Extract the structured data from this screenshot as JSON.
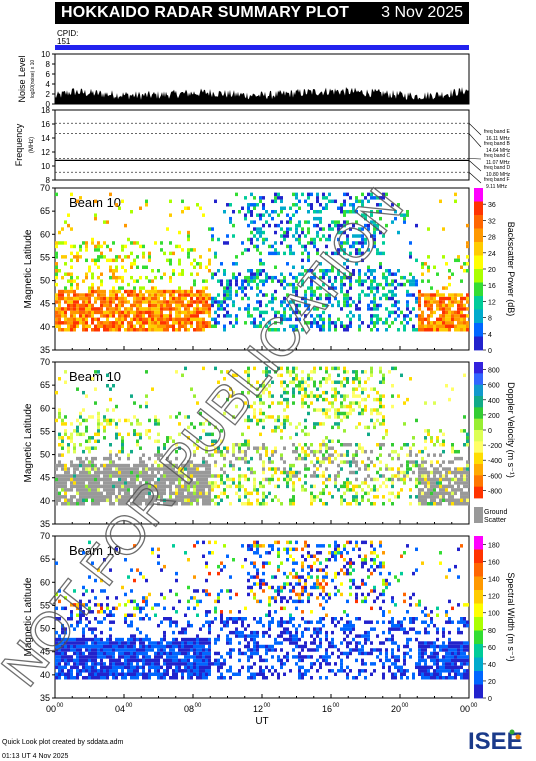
{
  "title": "HOKKAIDO RADAR SUMMARY PLOT",
  "date": "3 Nov 2025",
  "cpid_label": "CPID:",
  "cpid_value": "151",
  "watermark": "NOT FOR PUBLICATION",
  "footer_line1": "Quick Look plot created by sddata.adm",
  "footer_line2": "01:13 UT  4 Nov 2025",
  "logo_text": "ISEE",
  "colors": {
    "cpid_bar": "#2222ee",
    "ground_scatter": "#999999",
    "power_scale": [
      "#ff00ff",
      "#ff3300",
      "#ff6600",
      "#ff9900",
      "#ffcc00",
      "#ffff00",
      "#aaff00",
      "#33dd33",
      "#00cc99",
      "#00aacc",
      "#0066ff",
      "#2222cc"
    ],
    "velocity_scale": [
      "#ff3300",
      "#ff7700",
      "#ffaa00",
      "#ffdd00",
      "#ffff66",
      "#ddff55",
      "#99ee33",
      "#33cc33",
      "#11aa88",
      "#1199cc",
      "#3366ff",
      "#3322dd"
    ]
  },
  "chart_data": [
    {
      "type": "area",
      "panel": "noise",
      "ylabel": "Noise Level",
      "ylabel_sub": "log10(noise) x 10",
      "yticks": [
        0,
        2,
        4,
        6,
        8,
        10
      ],
      "ylim": [
        0,
        10
      ],
      "x": [
        0,
        1,
        2,
        3,
        4,
        5,
        6,
        7,
        8,
        9,
        10,
        11,
        12,
        13,
        14,
        15,
        16,
        17,
        18,
        19,
        20,
        21,
        22,
        23,
        24
      ],
      "values": [
        1.5,
        2.5,
        2.2,
        2.0,
        1.8,
        1.7,
        1.8,
        2.0,
        2.2,
        2.3,
        2.0,
        1.8,
        1.7,
        1.9,
        2.2,
        2.4,
        2.6,
        2.5,
        2.3,
        2.1,
        1.8,
        1.6,
        1.8,
        2.2,
        2.8
      ]
    },
    {
      "type": "line",
      "panel": "frequency",
      "ylabel": "Frequency",
      "yunit": "MHz",
      "yticks": [
        8,
        10,
        12,
        14,
        16,
        18
      ],
      "ylim": [
        8,
        18
      ],
      "freq_bands": [
        {
          "label": "freq band E",
          "mhz": "16.11 MHz",
          "value": 16.11
        },
        {
          "label": "freq band B",
          "mhz": "14.64 MHz",
          "value": 14.64
        },
        {
          "label": "freq band C",
          "mhz": "11.07 MHz",
          "value": 11.07
        },
        {
          "label": "freq band D",
          "mhz": "10.80 MHz",
          "value": 10.8
        },
        {
          "label": "freq band F",
          "mhz": "9.11 MHz",
          "value": 9.11
        }
      ],
      "operating_frequency": 10.8
    },
    {
      "type": "heatmap",
      "panel": "power",
      "beam_label": "Beam 10",
      "ylabel": "Magnetic Latitude",
      "yticks": [
        35,
        40,
        45,
        50,
        55,
        60,
        65,
        70
      ],
      "ylim": [
        35,
        70
      ],
      "colorbar_label": "Backscatter Power (dB)",
      "colorbar_ticks": [
        0,
        4,
        8,
        12,
        16,
        20,
        24,
        28,
        32,
        36
      ],
      "colorbar_range": [
        0,
        40
      ]
    },
    {
      "type": "heatmap",
      "panel": "velocity",
      "beam_label": "Beam 10",
      "ylabel": "Magnetic Latitude",
      "yticks": [
        35,
        40,
        45,
        50,
        55,
        60,
        65,
        70
      ],
      "ylim": [
        35,
        70
      ],
      "colorbar_label": "Doppler Velocity (m s⁻¹)",
      "colorbar_ticks": [
        -800,
        -600,
        -400,
        -200,
        0,
        200,
        400,
        600,
        800
      ],
      "colorbar_range": [
        -900,
        900
      ],
      "ground_scatter_label_1": "Ground",
      "ground_scatter_label_2": "Scatter"
    },
    {
      "type": "heatmap",
      "panel": "width",
      "beam_label": "Beam 10",
      "ylabel": "Magnetic Latitude",
      "yticks": [
        35,
        40,
        45,
        50,
        55,
        60,
        65,
        70
      ],
      "ylim": [
        35,
        70
      ],
      "colorbar_label": "Spectral Width (m s⁻¹)",
      "colorbar_ticks": [
        0,
        20,
        40,
        60,
        80,
        100,
        120,
        140,
        160,
        180
      ],
      "colorbar_range": [
        0,
        190
      ]
    }
  ],
  "xaxis": {
    "label": "UT",
    "ticks": [
      "00",
      "04",
      "08",
      "12",
      "16",
      "20",
      "00"
    ],
    "tick_sup": "00",
    "range_hours": [
      0,
      24
    ]
  }
}
